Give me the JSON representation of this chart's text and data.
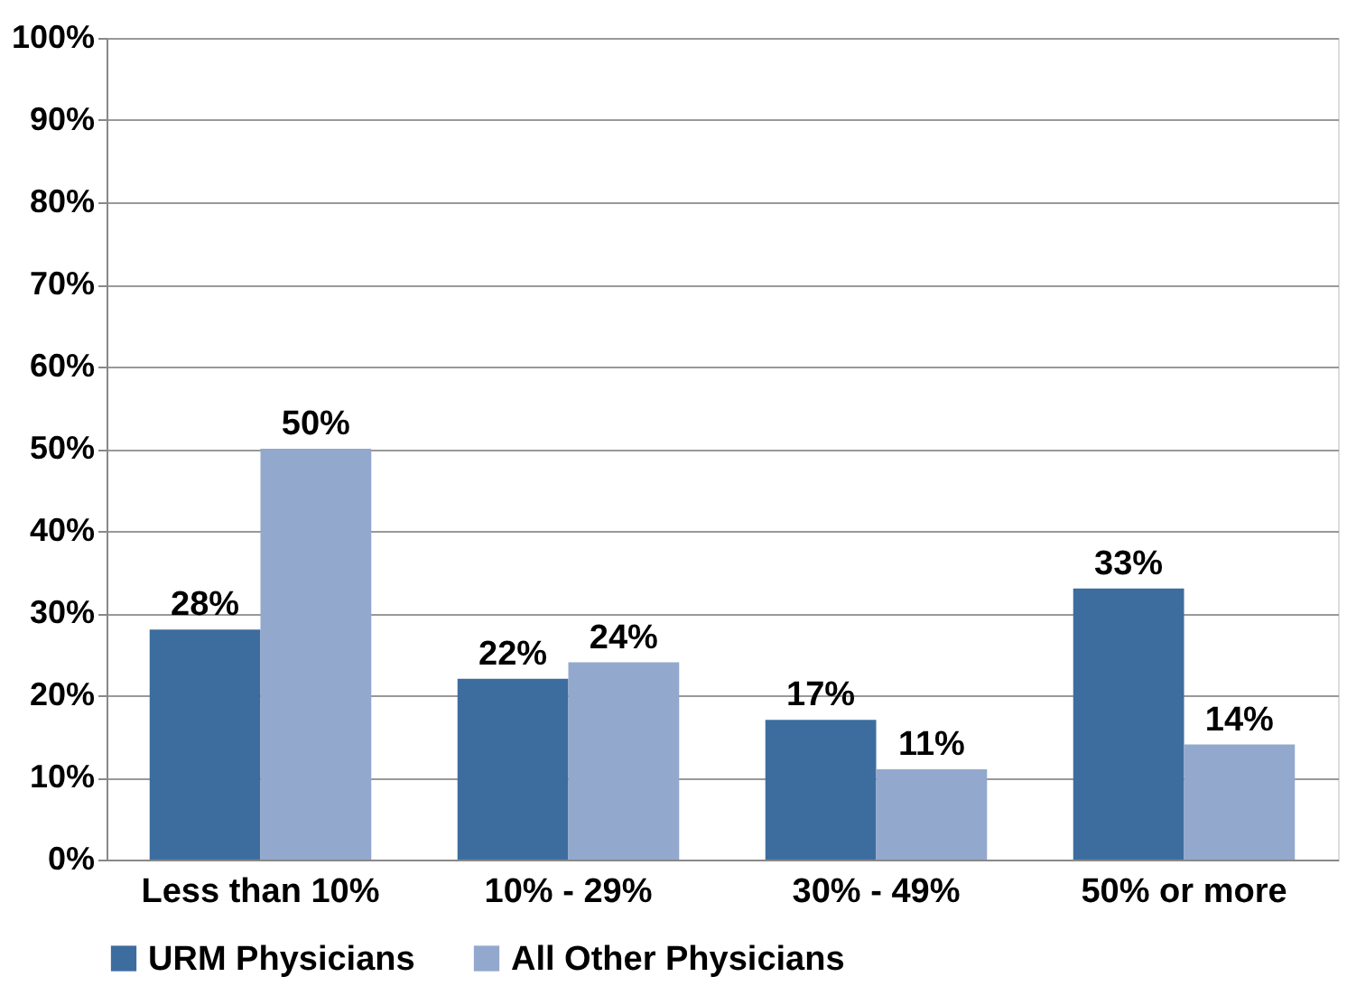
{
  "chart_data": {
    "type": "bar",
    "categories": [
      "Less than 10%",
      "10% - 29%",
      "30% - 49%",
      "50% or more"
    ],
    "series": [
      {
        "name": "URM Physicians",
        "color": "#3d6d9e",
        "values": [
          28,
          22,
          17,
          33
        ],
        "value_labels": [
          "28%",
          "22%",
          "17%",
          "33%"
        ]
      },
      {
        "name": "All Other Physicians",
        "color": "#93a8cd",
        "values": [
          50,
          24,
          11,
          14
        ],
        "value_labels": [
          "50%",
          "24%",
          "11%",
          "14%"
        ]
      }
    ],
    "ylim": [
      0,
      100
    ],
    "yticks": [
      {
        "value": 0,
        "label": "0%"
      },
      {
        "value": 10,
        "label": "10%"
      },
      {
        "value": 20,
        "label": "20%"
      },
      {
        "value": 30,
        "label": "30%"
      },
      {
        "value": 40,
        "label": "40%"
      },
      {
        "value": 50,
        "label": "50%"
      },
      {
        "value": 60,
        "label": "60%"
      },
      {
        "value": 70,
        "label": "70%"
      },
      {
        "value": 80,
        "label": "80%"
      },
      {
        "value": 90,
        "label": "90%"
      },
      {
        "value": 100,
        "label": "100%"
      }
    ],
    "grid": "y",
    "legend": "bottom"
  }
}
